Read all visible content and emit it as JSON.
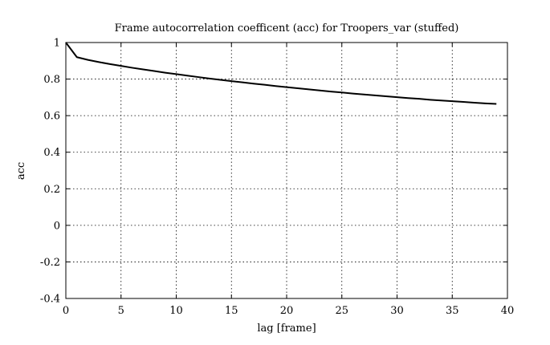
{
  "chart_data": {
    "type": "line",
    "title": "Frame autocorrelation coefficent (acc) for Troopers_var (stuffed)",
    "xlabel": "lag [frame]",
    "ylabel": "acc",
    "xlim": [
      0,
      40
    ],
    "ylim": [
      -0.4,
      1
    ],
    "grid": true,
    "xticks": [
      "0",
      "5",
      "10",
      "15",
      "20",
      "25",
      "30",
      "35",
      "40"
    ],
    "yticks": [
      "-0.4",
      "-0.2",
      "0",
      "0.2",
      "0.4",
      "0.6",
      "0.8",
      "1"
    ],
    "series": [
      {
        "color": "#000000",
        "x": [
          0,
          1,
          2,
          3,
          4,
          5,
          6,
          7,
          8,
          9,
          10,
          11,
          12,
          13,
          14,
          15,
          16,
          17,
          18,
          19,
          20,
          21,
          22,
          23,
          24,
          25,
          26,
          27,
          28,
          29,
          30,
          31,
          32,
          33,
          34,
          35,
          36,
          37,
          38,
          39
        ],
        "y": [
          1.0,
          0.92,
          0.905,
          0.893,
          0.882,
          0.872,
          0.862,
          0.853,
          0.844,
          0.835,
          0.827,
          0.819,
          0.811,
          0.803,
          0.796,
          0.789,
          0.782,
          0.775,
          0.769,
          0.762,
          0.756,
          0.75,
          0.744,
          0.738,
          0.732,
          0.727,
          0.721,
          0.716,
          0.711,
          0.706,
          0.701,
          0.696,
          0.692,
          0.687,
          0.683,
          0.679,
          0.675,
          0.671,
          0.667,
          0.664
        ]
      }
    ]
  }
}
